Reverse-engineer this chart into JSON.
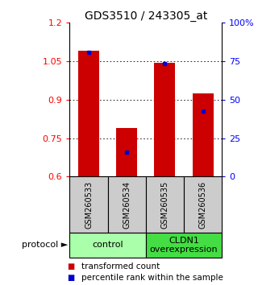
{
  "title": "GDS3510 / 243305_at",
  "samples": [
    "GSM260533",
    "GSM260534",
    "GSM260535",
    "GSM260536"
  ],
  "red_values": [
    1.09,
    0.79,
    1.045,
    0.925
  ],
  "blue_values": [
    1.085,
    0.695,
    1.04,
    0.855
  ],
  "ylim_left": [
    0.6,
    1.2
  ],
  "yticks_left": [
    0.6,
    0.75,
    0.9,
    1.05,
    1.2
  ],
  "ylim_right": [
    0,
    100
  ],
  "yticks_right": [
    0,
    25,
    50,
    75,
    100
  ],
  "ytick_right_labels": [
    "0",
    "25",
    "50",
    "75",
    "100%"
  ],
  "bar_baseline": 0.6,
  "bar_color": "#cc0000",
  "blue_color": "#0000cc",
  "groups": [
    {
      "label": "control",
      "samples": [
        0,
        1
      ],
      "color": "#aaffaa"
    },
    {
      "label": "CLDN1\noverexpression",
      "samples": [
        2,
        3
      ],
      "color": "#44dd44"
    }
  ],
  "sample_box_color": "#cccccc",
  "bar_width": 0.55,
  "protocol_label": "protocol ►",
  "legend_items": [
    {
      "color": "#cc0000",
      "label": "transformed count"
    },
    {
      "color": "#0000cc",
      "label": "percentile rank within the sample"
    }
  ],
  "title_fontsize": 10,
  "tick_fontsize": 8,
  "legend_fontsize": 7.5,
  "sample_fontsize": 7,
  "group_fontsize": 8
}
